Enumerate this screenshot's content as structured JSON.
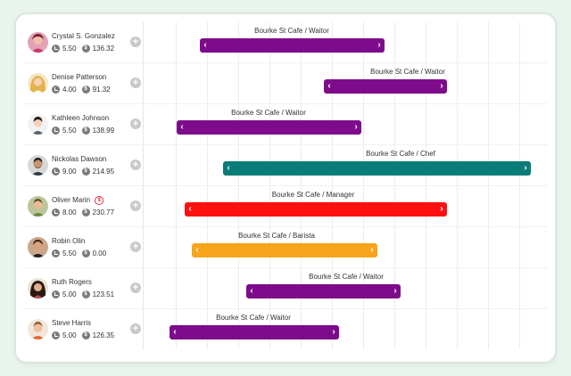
{
  "colors": {
    "waitor": "#7e0b8b",
    "chef": "#0a7c78",
    "manager": "#ff1010",
    "barista": "#f7a41b"
  },
  "roster": [
    {
      "name": "Crystal S. Gonzalez",
      "hours": "5.50",
      "cost": "136.32",
      "shift": "Bourke St Cafe / Waitor",
      "role": "waitor",
      "alert": false,
      "avatar": "crystal-avatar"
    },
    {
      "name": "Denise Patterson",
      "hours": "4.00",
      "cost": "91.32",
      "shift": "Bourke St Cafe / Waitor",
      "role": "waitor",
      "alert": false,
      "avatar": "denise-avatar"
    },
    {
      "name": "Kathleen Johnson",
      "hours": "5.50",
      "cost": "138.99",
      "shift": "Bourke St Cafe / Waitor",
      "role": "waitor",
      "alert": false,
      "avatar": "kathleen-avatar"
    },
    {
      "name": "Nickolas Dawson",
      "hours": "9.00",
      "cost": "214.95",
      "shift": "Bourke St Cafe / Chef",
      "role": "chef",
      "alert": false,
      "avatar": "nickolas-avatar"
    },
    {
      "name": "Oliver Marin",
      "hours": "8.00",
      "cost": "230.77",
      "shift": "Bourke St Cafe / Manager",
      "role": "manager",
      "alert": true,
      "alert_symbol": "$",
      "avatar": "oliver-avatar"
    },
    {
      "name": "Robin Olin",
      "hours": "5.50",
      "cost": "0.00",
      "shift": "Bourke St Cafe / Barista",
      "role": "barista",
      "alert": false,
      "avatar": "robin-avatar"
    },
    {
      "name": "Ruth Rogers",
      "hours": "5.00",
      "cost": "123.51",
      "shift": "Bourke St Cafe / Waitor",
      "role": "waitor",
      "alert": false,
      "avatar": "ruth-avatar"
    },
    {
      "name": "Steve Harris",
      "hours": "5.00",
      "cost": "126.35",
      "shift": "Bourke St Cafe / Waitor",
      "role": "waitor",
      "alert": false,
      "avatar": "steve-avatar"
    }
  ],
  "icons": {
    "hours": "clock-icon",
    "cost": "dollar-icon",
    "add": "plus-icon",
    "handle_left": "chevron-left-icon",
    "handle_right": "chevron-right-icon"
  },
  "symbols": {
    "dollar": "$",
    "plus": "+",
    "chevron_left": "‹",
    "chevron_right": "›"
  }
}
